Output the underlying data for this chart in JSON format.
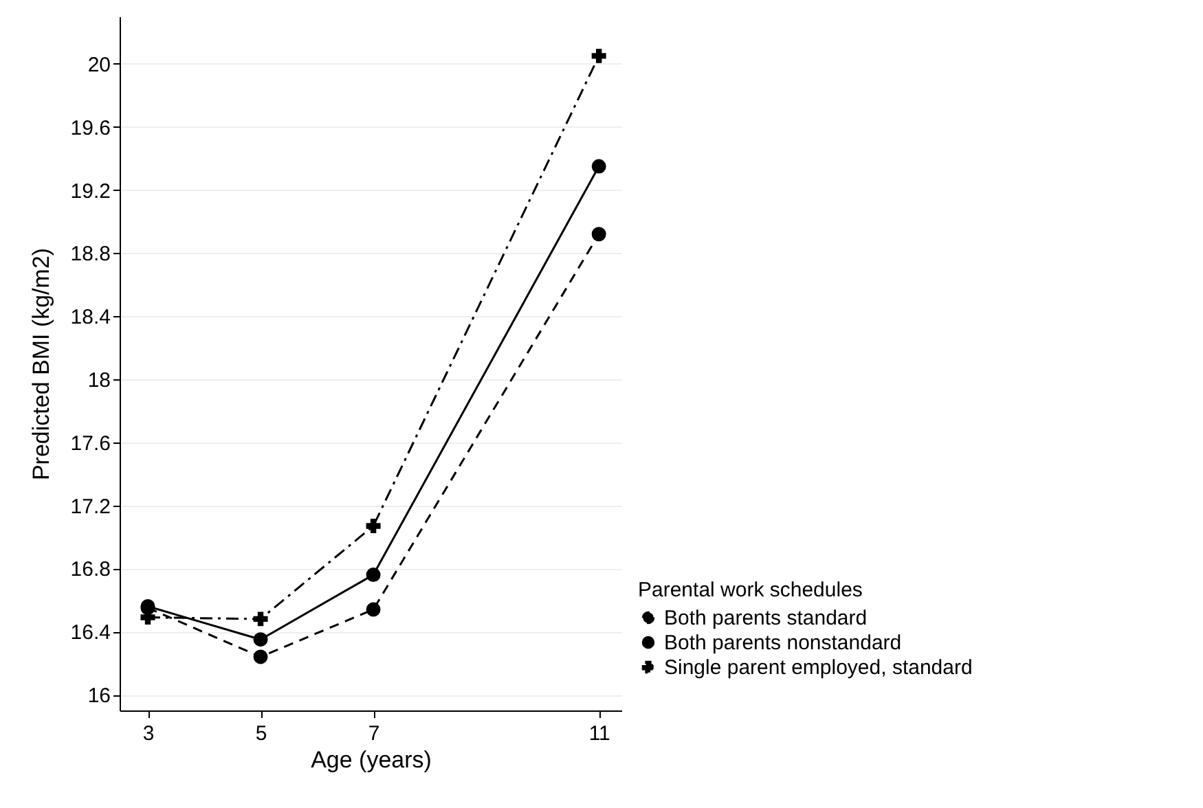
{
  "chart_data": {
    "type": "line",
    "xlabel": "Age (years)",
    "ylabel": "Predicted BMI (kg/m2)",
    "legend_title": "Parental work schedules",
    "x": [
      3,
      5,
      7,
      11
    ],
    "series": [
      {
        "name": "Both parents standard",
        "color": "#000000",
        "marker": "circle",
        "line_style": "dashed",
        "values": [
          16.55,
          16.24,
          16.54,
          18.92
        ]
      },
      {
        "name": "Both parents nonstandard",
        "color": "#000000",
        "marker": "circle",
        "line_style": "solid",
        "values": [
          16.56,
          16.35,
          16.76,
          19.35
        ]
      },
      {
        "name": "Single parent employed, standard",
        "color": "#000000",
        "marker": "cross",
        "line_style": "dashdot",
        "values": [
          16.49,
          16.48,
          17.07,
          20.05
        ]
      }
    ],
    "xlim": [
      2.5,
      11.4
    ],
    "xticks": [
      3,
      5,
      7,
      11
    ],
    "ylim": [
      15.9,
      20.3
    ],
    "yticks": [
      16,
      16.4,
      16.8,
      17.2,
      17.6,
      18,
      18.4,
      18.8,
      19.2,
      19.6,
      20
    ],
    "grid": "y",
    "legend": "bottom right"
  }
}
